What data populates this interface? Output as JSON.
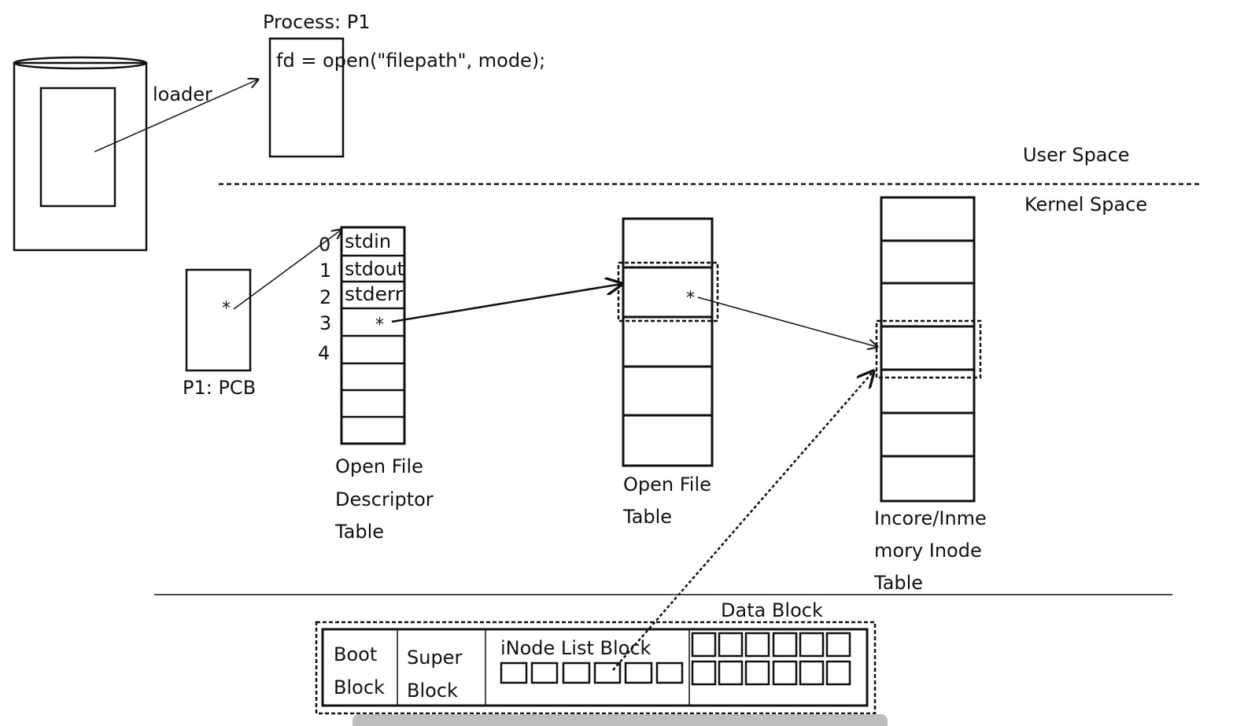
{
  "process": {
    "title": "Process: P1",
    "code": "fd = open(\"filepath\", mode);"
  },
  "loader_label": "loader",
  "user_space_label": "User Space",
  "kernel_space_label": "Kernel Space",
  "pcb": {
    "label": "P1: PCB",
    "pointer": "*"
  },
  "ofdt": {
    "indices": [
      "0",
      "1",
      "2",
      "3",
      "4"
    ],
    "entries": [
      "stdin",
      "stdout",
      "stderr",
      "*"
    ],
    "caption": [
      "Open File",
      "Descriptor",
      "Table"
    ]
  },
  "oft": {
    "pointer": "*",
    "caption": [
      "Open File",
      "Table"
    ]
  },
  "inode_table": {
    "caption": [
      "Incore/Inme",
      "mory Inode",
      "Table"
    ]
  },
  "disk": {
    "data_block_label": "Data Block",
    "boot_block": [
      "Boot",
      "Block"
    ],
    "super_block": [
      "Super",
      "Block"
    ],
    "inode_list_label": "iNode List Block"
  }
}
